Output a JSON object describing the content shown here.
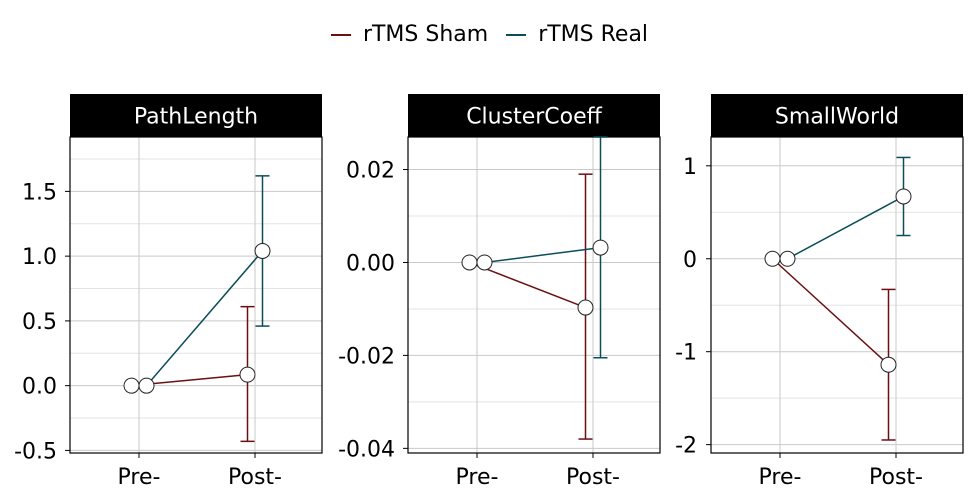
{
  "legend": {
    "items": [
      {
        "label": "rTMS Sham",
        "color": "#6b0f12"
      },
      {
        "label": "rTMS Real",
        "color": "#0b4d59"
      }
    ]
  },
  "chart_data": [
    {
      "type": "line",
      "title": "PathLength",
      "categories": [
        "Pre-",
        "Post-"
      ],
      "ylim": [
        -0.52,
        1.92
      ],
      "yticks": [
        -0.5,
        0.0,
        0.5,
        1.0,
        1.5
      ],
      "ytick_labels": [
        "-0.5",
        "0.0",
        "0.5",
        "1.0",
        "1.5"
      ],
      "series": [
        {
          "name": "rTMS Sham",
          "color": "#6b0f12",
          "values": [
            0.0,
            0.085
          ],
          "err_low": [
            null,
            -0.43
          ],
          "err_high": [
            null,
            0.61
          ]
        },
        {
          "name": "rTMS Real",
          "color": "#0b4d59",
          "values": [
            0.0,
            1.04
          ],
          "err_low": [
            null,
            0.46
          ],
          "err_high": [
            null,
            1.62
          ]
        }
      ],
      "grid": true
    },
    {
      "type": "line",
      "title": "ClusterCoeff",
      "categories": [
        "Pre-",
        "Post-"
      ],
      "ylim": [
        -0.041,
        0.027
      ],
      "yticks": [
        -0.04,
        -0.02,
        0.0,
        0.02
      ],
      "ytick_labels": [
        "-0.04",
        "-0.02",
        "0.00",
        "0.02"
      ],
      "series": [
        {
          "name": "rTMS Sham",
          "color": "#6b0f12",
          "values": [
            0.0,
            -0.0097
          ],
          "err_low": [
            null,
            -0.038
          ],
          "err_high": [
            null,
            0.019
          ]
        },
        {
          "name": "rTMS Real",
          "color": "#0b4d59",
          "values": [
            0.0,
            0.0032
          ],
          "err_low": [
            null,
            -0.0205
          ],
          "err_high": [
            null,
            0.027
          ]
        }
      ],
      "grid": true
    },
    {
      "type": "line",
      "title": "SmallWorld",
      "categories": [
        "Pre-",
        "Post-"
      ],
      "ylim": [
        -2.09,
        1.31
      ],
      "yticks": [
        -2,
        -1,
        0,
        1
      ],
      "ytick_labels": [
        "-2",
        "-1",
        "0",
        "1"
      ],
      "series": [
        {
          "name": "rTMS Sham",
          "color": "#6b0f12",
          "values": [
            0.0,
            -1.14
          ],
          "err_low": [
            null,
            -1.95
          ],
          "err_high": [
            null,
            -0.33
          ]
        },
        {
          "name": "rTMS Real",
          "color": "#0b4d59",
          "values": [
            0.0,
            0.67
          ],
          "err_low": [
            null,
            0.25
          ],
          "err_high": [
            null,
            1.09
          ]
        }
      ],
      "grid": true
    }
  ]
}
